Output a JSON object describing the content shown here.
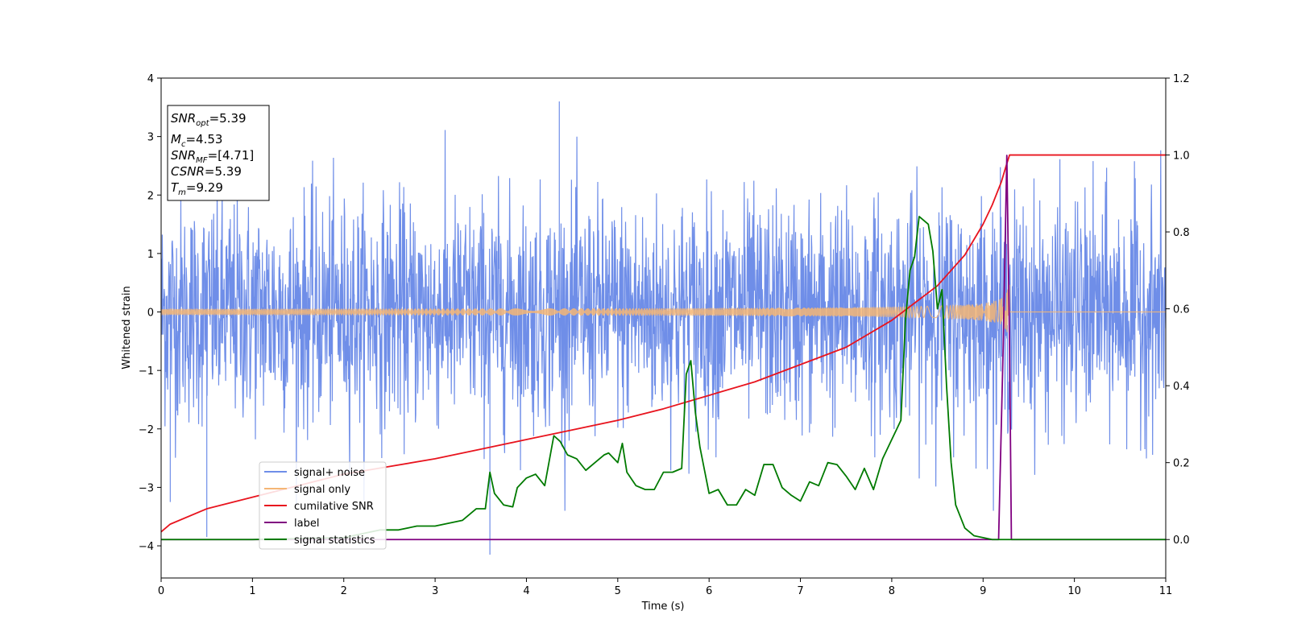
{
  "chart_data": {
    "type": "line",
    "xlabel": "Time (s)",
    "ylabel": "Whitened strain",
    "xlim": [
      0,
      11
    ],
    "ylim": [
      -4.55,
      4
    ],
    "y2lim": [
      -0.1,
      1.2
    ],
    "x_ticks": [
      "0",
      "1",
      "2",
      "3",
      "4",
      "5",
      "6",
      "7",
      "8",
      "9",
      "10",
      "11"
    ],
    "y_ticks": [
      "4",
      "3",
      "2",
      "1",
      "0",
      "−1",
      "−2",
      "−3",
      "−4"
    ],
    "y2_ticks": [
      "1.2",
      "1.0",
      "0.8",
      "0.6",
      "0.4",
      "0.2",
      "0.0"
    ],
    "legend_position": "lower-left",
    "colors": {
      "noise": "#6f8ee8",
      "signal": "#f5b675",
      "csnr": "#e8141e",
      "label": "#800080",
      "stats": "#007a00"
    },
    "info_box": {
      "snr_opt": {
        "base": "SNR",
        "sub": "opt",
        "value": "=5.39"
      },
      "mc": {
        "base": "M",
        "sub": "c",
        "value": "=4.53"
      },
      "snr_mf": {
        "base": "SNR",
        "sub": "MF",
        "value": "=[4.71]"
      },
      "csnr": {
        "base": "CSNR",
        "value": "=5.39"
      },
      "tm": {
        "base": "T",
        "sub": "m",
        "value": "=9.29"
      }
    },
    "series": [
      {
        "name": "signal+ noise",
        "axis": "left",
        "style": "noise",
        "x_range": [
          0,
          11
        ],
        "typical_envelope": [
          -1.6,
          1.6
        ],
        "peak_max": 3.6,
        "peak_min": -4.15
      },
      {
        "name": "signal only",
        "axis": "left",
        "style": "chirp",
        "chirp_start_x": 0,
        "chirp_end_x": 9.29,
        "amplitude_start": 0.04,
        "amplitude_end": 0.5,
        "after_end_value": 0
      },
      {
        "name": "cumilative SNR",
        "axis": "right",
        "x": [
          0,
          0.1,
          0.5,
          1,
          1.5,
          2,
          2.5,
          3,
          3.5,
          4,
          4.5,
          5,
          5.5,
          6,
          6.5,
          7,
          7.5,
          8,
          8.5,
          8.8,
          9,
          9.1,
          9.2,
          9.25,
          9.29,
          9.4,
          10,
          11
        ],
        "values": [
          0.02,
          0.04,
          0.08,
          0.11,
          0.14,
          0.17,
          0.19,
          0.21,
          0.235,
          0.26,
          0.285,
          0.31,
          0.34,
          0.375,
          0.41,
          0.455,
          0.5,
          0.57,
          0.66,
          0.74,
          0.82,
          0.87,
          0.93,
          0.97,
          1.0,
          1.0,
          1.0,
          1.0
        ]
      },
      {
        "name": "label",
        "axis": "right",
        "x": [
          0,
          9.17,
          9.22,
          9.26,
          9.29,
          9.31,
          11
        ],
        "values": [
          0,
          0,
          0.5,
          0.999,
          0.5,
          0,
          0
        ]
      },
      {
        "name": "signal statistics",
        "axis": "right",
        "x": [
          0,
          1,
          2,
          2.4,
          2.6,
          2.8,
          3,
          3.3,
          3.45,
          3.55,
          3.6,
          3.65,
          3.75,
          3.85,
          3.9,
          4.0,
          4.1,
          4.2,
          4.3,
          4.37,
          4.45,
          4.55,
          4.65,
          4.75,
          4.85,
          4.9,
          5.0,
          5.05,
          5.1,
          5.2,
          5.3,
          5.4,
          5.5,
          5.6,
          5.7,
          5.75,
          5.8,
          5.85,
          5.9,
          5.95,
          6.0,
          6.1,
          6.2,
          6.3,
          6.4,
          6.5,
          6.6,
          6.7,
          6.8,
          6.9,
          7.0,
          7.1,
          7.2,
          7.3,
          7.4,
          7.5,
          7.6,
          7.7,
          7.8,
          7.9,
          8.0,
          8.05,
          8.1,
          8.15,
          8.2,
          8.25,
          8.3,
          8.4,
          8.45,
          8.5,
          8.55,
          8.6,
          8.65,
          8.7,
          8.8,
          8.9,
          9.0,
          9.1,
          9.2,
          9.3,
          10,
          11
        ],
        "values": [
          0.0,
          0.0,
          0.005,
          0.025,
          0.025,
          0.035,
          0.035,
          0.05,
          0.08,
          0.08,
          0.175,
          0.12,
          0.09,
          0.085,
          0.135,
          0.16,
          0.17,
          0.14,
          0.27,
          0.255,
          0.22,
          0.21,
          0.18,
          0.2,
          0.22,
          0.225,
          0.2,
          0.25,
          0.175,
          0.14,
          0.13,
          0.13,
          0.175,
          0.175,
          0.185,
          0.43,
          0.465,
          0.33,
          0.24,
          0.18,
          0.12,
          0.13,
          0.09,
          0.09,
          0.13,
          0.115,
          0.195,
          0.195,
          0.135,
          0.115,
          0.1,
          0.15,
          0.14,
          0.2,
          0.195,
          0.165,
          0.13,
          0.185,
          0.13,
          0.21,
          0.26,
          0.285,
          0.31,
          0.57,
          0.7,
          0.735,
          0.84,
          0.82,
          0.75,
          0.6,
          0.65,
          0.4,
          0.2,
          0.09,
          0.03,
          0.01,
          0.005,
          0.0,
          0.0,
          0.0,
          0.0,
          0.0
        ]
      }
    ]
  }
}
